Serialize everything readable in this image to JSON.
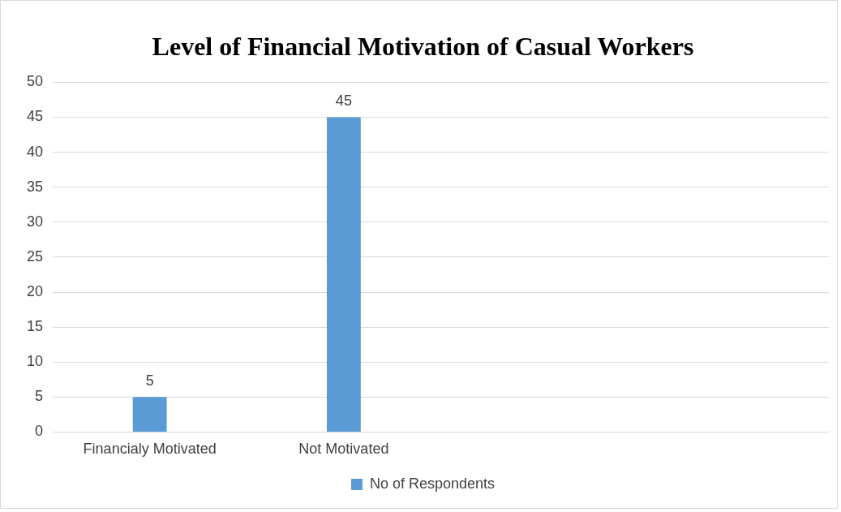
{
  "chart_data": {
    "type": "bar",
    "title": "Level of Financial Motivation of Casual Workers",
    "categories": [
      "Financialy Motivated",
      "Not Motivated",
      null,
      null
    ],
    "series": [
      {
        "name": "No of Respondents",
        "color": "#5b9bd5",
        "values": [
          5,
          45,
          null,
          null
        ]
      }
    ],
    "ylim": [
      0,
      50
    ],
    "yticks": [
      0,
      5,
      10,
      15,
      20,
      25,
      30,
      35,
      40,
      45,
      50
    ],
    "grid": "y",
    "legend": "bottom",
    "data_labels": true
  }
}
